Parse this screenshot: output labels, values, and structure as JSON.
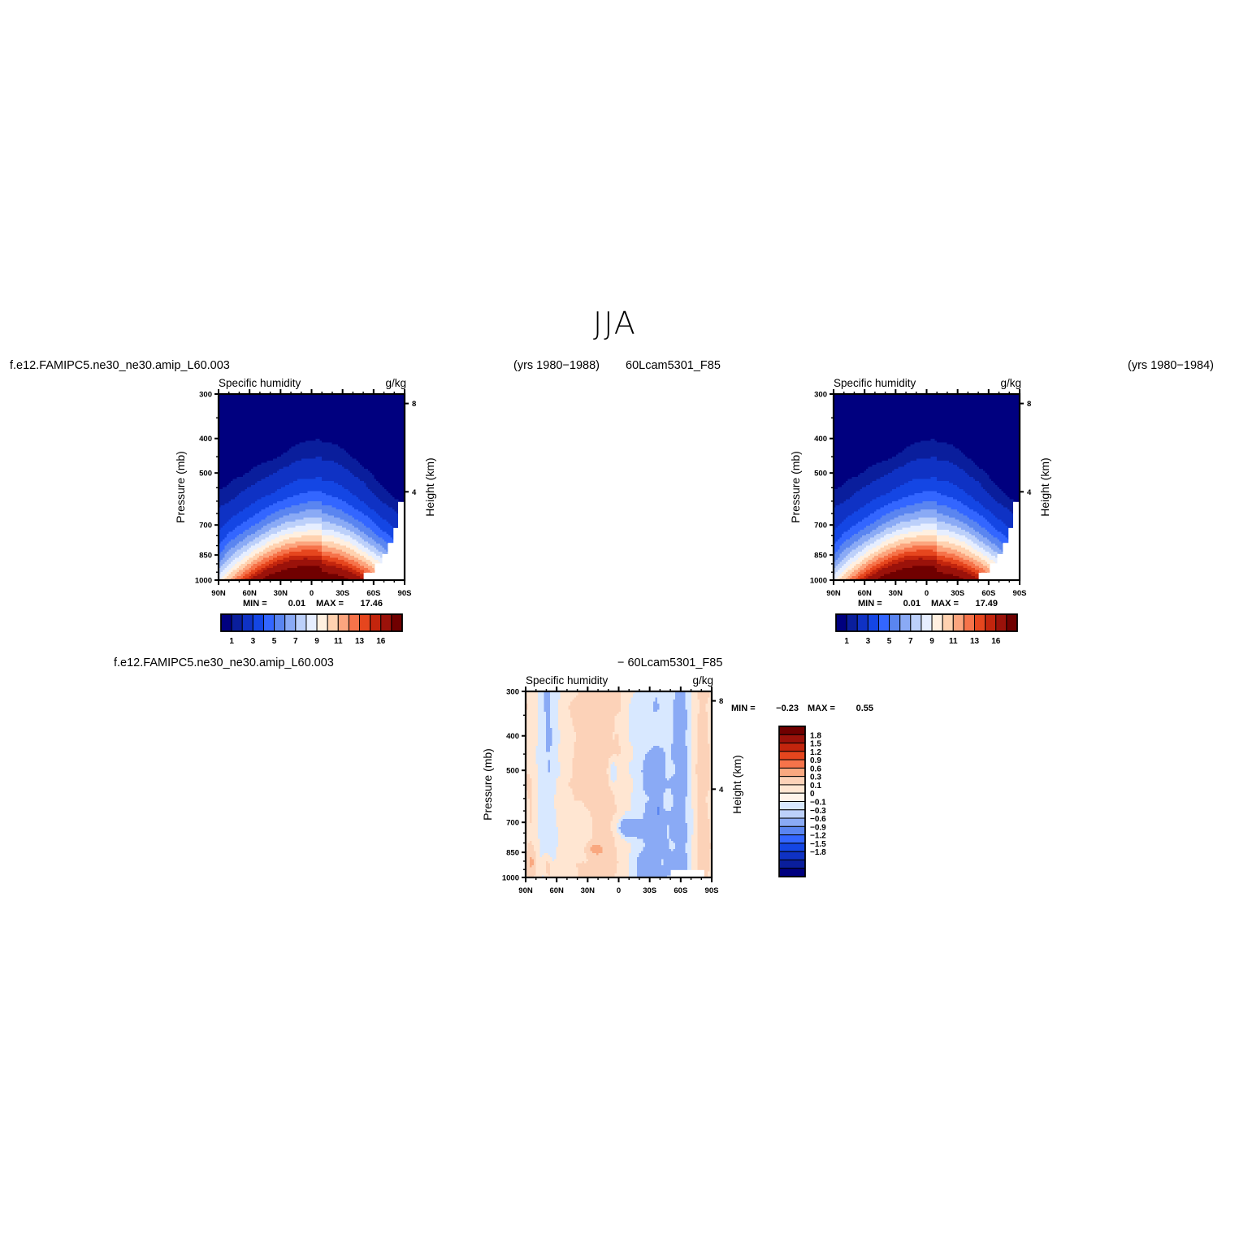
{
  "page": {
    "title": "JJA",
    "header_left_case": "f.e12.FAMIPC5.ne30_ne30.amip_L60.003",
    "header_left_years": "(yrs 1980−1988)",
    "header_right_case": "60Lcam5301_F85",
    "header_right_years": "(yrs 1980−1984)",
    "diff_case_a": "f.e12.FAMIPC5.ne30_ne30.amip_L60.003",
    "diff_case_b": "− 60Lcam5301_F85"
  },
  "colors": {
    "abs_levels": [
      "#00007f",
      "#0a1e9c",
      "#0f32c4",
      "#1446e4",
      "#3366ff",
      "#5a85f0",
      "#8aaaf5",
      "#bcd0fa",
      "#e6eeff",
      "#fff0e0",
      "#ffd2b0",
      "#fca57e",
      "#f6734a",
      "#e6461e",
      "#c3250d",
      "#9b120a",
      "#700000"
    ],
    "diff_levels": [
      "#00007f",
      "#0a1e9c",
      "#0f32c4",
      "#1446e4",
      "#3366ff",
      "#5a85f0",
      "#8aaaf5",
      "#bcd0fa",
      "#d8e8ff",
      "#fff4ea",
      "#ffe6d2",
      "#fcd2b8",
      "#f9a880",
      "#f6734a",
      "#e6461e",
      "#c3250d",
      "#9b120a",
      "#700000"
    ]
  },
  "chart_data": [
    {
      "type": "contour",
      "panel": "top-left",
      "title": "Specific humidity",
      "units": "g/kg",
      "ylabel": "Pressure (mb)",
      "ylabel_right": "Height (km)",
      "x_ticks": [
        "90N",
        "60N",
        "30N",
        "0",
        "30S",
        "60S",
        "90S"
      ],
      "x_range": [
        90,
        -90
      ],
      "y_ticks": [
        "300",
        "400",
        "500",
        "700",
        "850",
        "1000"
      ],
      "y_range": [
        300,
        1000
      ],
      "y_scale": "log",
      "y_right_ticks": [
        "8",
        "4"
      ],
      "min_label": "MIN =",
      "min_value": "0.01",
      "max_label": "MAX =",
      "max_value": "17.46",
      "colorbar_labels": [
        "1",
        "3",
        "5",
        "7",
        "9",
        "11",
        "13",
        "16"
      ],
      "peak": {
        "lat": -10,
        "pressure": 1000,
        "value": 17.46
      }
    },
    {
      "type": "contour",
      "panel": "top-right",
      "title": "Specific humidity",
      "units": "g/kg",
      "ylabel": "Pressure (mb)",
      "ylabel_right": "Height (km)",
      "x_ticks": [
        "90N",
        "60N",
        "30N",
        "0",
        "30S",
        "60S",
        "90S"
      ],
      "x_range": [
        90,
        -90
      ],
      "y_ticks": [
        "300",
        "400",
        "500",
        "700",
        "850",
        "1000"
      ],
      "y_range": [
        300,
        1000
      ],
      "y_scale": "log",
      "y_right_ticks": [
        "8",
        "4"
      ],
      "min_label": "MIN =",
      "min_value": "0.01",
      "max_label": "MAX =",
      "max_value": "17.49",
      "colorbar_labels": [
        "1",
        "3",
        "5",
        "7",
        "9",
        "11",
        "13",
        "16"
      ],
      "peak": {
        "lat": -10,
        "pressure": 1000,
        "value": 17.49
      }
    },
    {
      "type": "contour",
      "panel": "bottom-difference",
      "title": "Specific humidity",
      "units": "g/kg",
      "ylabel": "Pressure (mb)",
      "ylabel_right": "Height (km)",
      "x_ticks": [
        "90N",
        "60N",
        "30N",
        "0",
        "30S",
        "60S",
        "90S"
      ],
      "x_range": [
        90,
        -90
      ],
      "y_ticks": [
        "300",
        "400",
        "500",
        "700",
        "850",
        "1000"
      ],
      "y_range": [
        300,
        1000
      ],
      "y_scale": "log",
      "y_right_ticks": [
        "8",
        "4"
      ],
      "min_label": "MIN =",
      "min_value": "−0.23",
      "max_label": "MAX =",
      "max_value": "0.55",
      "colorbar_labels": [
        "1.8",
        "1.5",
        "1.2",
        "0.9",
        "0.6",
        "0.3",
        "0.1",
        "0",
        "−0.1",
        "−0.3",
        "−0.6",
        "−0.9",
        "−1.2",
        "−1.5",
        "−1.8"
      ]
    }
  ]
}
